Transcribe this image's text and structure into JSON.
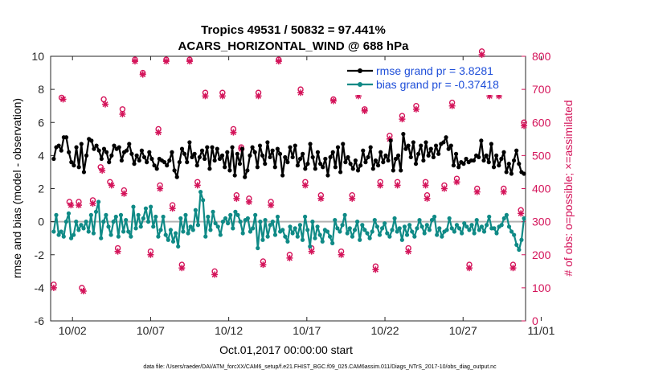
{
  "title_line1": "Tropics 49531 / 50832 = 97.441%",
  "title_line2": "ACARS_HORIZONTAL_WIND @ 688 hPa",
  "xlabel": "Oct.01,2017 00:00:00 start",
  "ylabel_left": "rmse and bias (model - observation)",
  "ylabel_right": "# of obs: o=possible; ×=assimilated",
  "footer": "data file: /Users/raeder/DAI/ATM_forcXX/CAM6_setup/f.e21.FHIST_BGC.f09_025.CAM6assim.011/Diags_NTrS_2017-10/obs_diag_output.nc",
  "colors": {
    "rmse": "#000000",
    "bias": "#0f8a86",
    "obs": "#d4145a",
    "zero_line": "#b3b3b3",
    "legend_text": "#1f4fd9"
  },
  "chart_data": {
    "type": "line",
    "x_start": "2017-10-01",
    "x_ticks": [
      "10/02",
      "10/07",
      "10/12",
      "10/17",
      "10/22",
      "10/27",
      "11/01"
    ],
    "xlim": [
      0.6,
      31.0
    ],
    "ylim_left": [
      -6,
      10
    ],
    "yticks_left": [
      "-6",
      "-4",
      "-2",
      "0",
      "2",
      "4",
      "6",
      "8",
      "10"
    ],
    "ylim_right": [
      0,
      800
    ],
    "yticks_right": [
      "0",
      "100",
      "200",
      "300",
      "400",
      "500",
      "600",
      "700",
      "800"
    ],
    "legend": [
      {
        "label": "rmse grand pr = 3.8281",
        "color": "#000000"
      },
      {
        "label": "bias grand pr = -0.37418",
        "color": "#0f8a86"
      }
    ],
    "series": [
      {
        "name": "rmse",
        "axis": "left",
        "values": [
          3.8,
          4.5,
          4.6,
          4.3,
          5.1,
          5.1,
          4.2,
          3.6,
          3.4,
          4.5,
          3.3,
          4.7,
          3.0,
          4.0,
          5.0,
          4.9,
          4.4,
          4.6,
          4.3,
          3.8,
          4.4,
          4.2,
          3.6,
          4.0,
          4.6,
          4.4,
          4.5,
          3.7,
          4.2,
          4.3,
          4.7,
          4.1,
          3.5,
          4.0,
          3.7,
          4.3,
          3.9,
          3.6,
          4.2,
          3.8,
          3.4,
          3.2,
          3.8,
          3.7,
          3.6,
          3.4,
          3.7,
          4.2,
          3.1,
          2.7,
          3.6,
          4.4,
          4.1,
          3.6,
          4.8,
          3.9,
          4.1,
          3.4,
          3.9,
          4.3,
          3.8,
          4.5,
          3.2,
          4.5,
          3.7,
          4.4,
          3.8,
          4.0,
          3.3,
          4.2,
          3.1,
          4.5,
          2.8,
          4.1,
          3.5,
          4.4,
          2.7,
          3.1,
          4.0,
          4.5,
          4.2,
          3.3,
          4.6,
          4.0,
          3.5,
          4.8,
          3.9,
          4.3,
          3.3,
          4.4,
          4.1,
          2.8,
          3.9,
          3.6,
          4.5,
          3.9,
          4.6,
          3.4,
          3.8,
          4.1,
          3.2,
          3.5,
          4.7,
          3.9,
          3.2,
          4.2,
          3.5,
          3.3,
          3.8,
          2.8,
          3.9,
          4.2,
          3.3,
          4.5,
          3.0,
          4.7,
          3.6,
          3.9,
          3.5,
          3.2,
          3.7,
          3.1,
          3.4,
          4.3,
          3.6,
          3.9,
          4.5,
          3.2,
          3.7,
          3.4,
          4.2,
          3.6,
          4.0,
          3.7,
          4.9,
          3.1,
          3.8,
          4.0,
          3.1,
          5.3,
          4.4,
          4.6,
          3.9,
          4.8,
          3.5,
          4.1,
          4.6,
          3.7,
          4.8,
          4.0,
          4.4,
          3.9,
          4.6,
          4.1,
          4.7,
          4.8,
          5.1,
          4.4,
          4.6,
          3.4,
          4.1,
          3.3,
          3.6,
          3.5,
          3.8,
          3.6,
          3.7,
          3.7,
          4.0,
          3.9,
          4.9,
          3.7,
          4.0,
          3.6,
          4.7,
          3.3,
          4.0,
          3.4,
          3.8,
          4.2,
          3.0,
          3.5,
          2.9,
          3.7,
          4.3,
          3.5,
          3.0,
          2.9
        ]
      },
      {
        "name": "bias",
        "axis": "left",
        "values": [
          -0.6,
          0.4,
          -0.8,
          -0.6,
          -0.9,
          0.0,
          0.5,
          -1.0,
          -0.8,
          0.0,
          -0.5,
          -0.2,
          -0.4,
          0.0,
          -0.6,
          0.4,
          -0.7,
          0.6,
          1.2,
          -1.0,
          0.0,
          0.4,
          -0.3,
          -0.8,
          0.0,
          0.3,
          -0.9,
          0.4,
          -0.6,
          0.1,
          -0.6,
          -0.9,
          0.9,
          -0.4,
          0.4,
          -0.3,
          0.2,
          0.8,
          0.0,
          0.9,
          -0.3,
          0.3,
          -0.9,
          -0.5,
          0.3,
          -0.8,
          -1.1,
          -0.5,
          -1.2,
          -0.7,
          -1.5,
          0.2,
          -0.6,
          0.4,
          -0.7,
          -0.3,
          -0.5,
          0.7,
          -0.2,
          1.8,
          1.3,
          -0.9,
          0.3,
          -0.5,
          0.6,
          -0.1,
          -0.3,
          -0.8,
          0.0,
          0.2,
          -0.1,
          0.4,
          -0.4,
          0.6,
          0.4,
          0.0,
          -0.7,
          0.1,
          0.2,
          -0.6,
          -0.4,
          0.4,
          -1.6,
          0.0,
          -1.1,
          0.1,
          -0.9,
          -0.2,
          0.0,
          -0.8,
          0.3,
          -0.6,
          -0.5,
          -0.9,
          -1.2,
          -0.3,
          -0.7,
          -0.4,
          -0.9,
          -0.2,
          -1.1,
          0.3,
          -0.5,
          -1.5,
          0.0,
          -1.0,
          -0.3,
          -0.8,
          -1.2,
          -0.5,
          -0.6,
          -0.9,
          -1.3,
          0.1,
          -0.4,
          -0.6,
          -0.2,
          0.4,
          -0.7,
          -0.4,
          -0.9,
          -0.5,
          0.0,
          -1.1,
          -0.2,
          -0.5,
          -0.7,
          -1.0,
          -0.6,
          0.1,
          -0.3,
          -0.8,
          -0.4,
          -0.1,
          -0.7,
          -0.9,
          -0.5,
          0.2,
          -0.6,
          -0.4,
          -1.1,
          -0.3,
          -0.8,
          -0.2,
          -0.6,
          -0.9,
          -0.4,
          0.1,
          -0.3,
          -0.7,
          -0.2,
          -0.5,
          0.1,
          0.3,
          -0.8,
          -0.4,
          -0.9,
          -0.6,
          -0.5,
          0.2,
          -0.4,
          -0.6,
          -0.2,
          -0.4,
          -0.7,
          -0.1,
          -0.3,
          -0.5,
          -0.2,
          -0.7,
          0.1,
          -0.5,
          -0.3,
          -0.6,
          -0.2,
          0.3,
          -0.4,
          -0.4,
          -0.7,
          -0.3,
          -0.2,
          0.2,
          0.4,
          -0.3,
          -0.6,
          -0.8,
          -1.4,
          -1.7,
          -1.1,
          0.2
        ]
      },
      {
        "name": "obs_possible",
        "axis": "right",
        "marker": "o",
        "points": [
          [
            0.8,
            110
          ],
          [
            1.3,
            675
          ],
          [
            1.8,
            360
          ],
          [
            2.4,
            360
          ],
          [
            2.6,
            100
          ],
          [
            3.3,
            365
          ],
          [
            3.8,
            465
          ],
          [
            4.0,
            670
          ],
          [
            4.4,
            420
          ],
          [
            4.9,
            220
          ],
          [
            5.2,
            640
          ],
          [
            5.3,
            395
          ],
          [
            6.0,
            790
          ],
          [
            6.5,
            750
          ],
          [
            7.0,
            210
          ],
          [
            7.5,
            580
          ],
          [
            7.6,
            410
          ],
          [
            8.0,
            790
          ],
          [
            8.4,
            350
          ],
          [
            9.0,
            170
          ],
          [
            9.5,
            790
          ],
          [
            10.0,
            420
          ],
          [
            10.5,
            690
          ],
          [
            11.1,
            150
          ],
          [
            11.6,
            690
          ],
          [
            12.3,
            580
          ],
          [
            12.5,
            380
          ],
          [
            12.8,
            525
          ],
          [
            13.3,
            370
          ],
          [
            13.9,
            690
          ],
          [
            14.2,
            180
          ],
          [
            14.7,
            360
          ],
          [
            15.2,
            790
          ],
          [
            15.9,
            200
          ],
          [
            16.6,
            700
          ],
          [
            16.9,
            420
          ],
          [
            17.3,
            220
          ],
          [
            17.9,
            380
          ],
          [
            18.7,
            670
          ],
          [
            19.2,
            210
          ],
          [
            19.9,
            380
          ],
          [
            20.3,
            690
          ],
          [
            20.7,
            640
          ],
          [
            21.4,
            165
          ],
          [
            21.7,
            420
          ],
          [
            22.3,
            560
          ],
          [
            22.8,
            420
          ],
          [
            23.1,
            620
          ],
          [
            23.5,
            220
          ],
          [
            24.0,
            650
          ],
          [
            24.6,
            420
          ],
          [
            24.7,
            380
          ],
          [
            25.4,
            740
          ],
          [
            25.8,
            410
          ],
          [
            26.3,
            660
          ],
          [
            26.6,
            430
          ],
          [
            27.1,
            760
          ],
          [
            27.4,
            170
          ],
          [
            27.9,
            400
          ],
          [
            28.2,
            815
          ],
          [
            28.7,
            690
          ],
          [
            29.3,
            690
          ],
          [
            29.6,
            400
          ],
          [
            30.2,
            170
          ],
          [
            30.7,
            335
          ],
          [
            30.9,
            600
          ]
        ]
      },
      {
        "name": "obs_assimilated",
        "axis": "right",
        "marker": "x",
        "points": [
          [
            0.8,
            100
          ],
          [
            1.4,
            670
          ],
          [
            1.9,
            350
          ],
          [
            2.4,
            350
          ],
          [
            2.7,
            90
          ],
          [
            3.3,
            355
          ],
          [
            3.9,
            455
          ],
          [
            4.1,
            655
          ],
          [
            4.5,
            410
          ],
          [
            4.9,
            210
          ],
          [
            5.2,
            625
          ],
          [
            5.3,
            385
          ],
          [
            6.0,
            785
          ],
          [
            6.5,
            745
          ],
          [
            7.0,
            200
          ],
          [
            7.5,
            570
          ],
          [
            7.6,
            400
          ],
          [
            8.0,
            785
          ],
          [
            8.4,
            340
          ],
          [
            9.0,
            160
          ],
          [
            9.5,
            785
          ],
          [
            10.0,
            410
          ],
          [
            10.5,
            680
          ],
          [
            11.1,
            140
          ],
          [
            11.6,
            680
          ],
          [
            12.3,
            570
          ],
          [
            12.5,
            370
          ],
          [
            12.8,
            520
          ],
          [
            13.3,
            360
          ],
          [
            13.9,
            680
          ],
          [
            14.2,
            170
          ],
          [
            14.7,
            350
          ],
          [
            15.2,
            785
          ],
          [
            15.9,
            190
          ],
          [
            16.6,
            690
          ],
          [
            16.9,
            410
          ],
          [
            17.3,
            210
          ],
          [
            17.9,
            370
          ],
          [
            18.7,
            665
          ],
          [
            19.2,
            200
          ],
          [
            19.9,
            370
          ],
          [
            20.3,
            680
          ],
          [
            20.7,
            635
          ],
          [
            21.4,
            155
          ],
          [
            21.7,
            410
          ],
          [
            22.3,
            550
          ],
          [
            22.8,
            410
          ],
          [
            23.1,
            610
          ],
          [
            23.5,
            210
          ],
          [
            24.0,
            640
          ],
          [
            24.6,
            410
          ],
          [
            24.7,
            370
          ],
          [
            25.4,
            730
          ],
          [
            25.8,
            400
          ],
          [
            26.3,
            650
          ],
          [
            26.6,
            420
          ],
          [
            27.1,
            750
          ],
          [
            27.4,
            160
          ],
          [
            27.9,
            390
          ],
          [
            28.2,
            805
          ],
          [
            28.7,
            680
          ],
          [
            29.3,
            680
          ],
          [
            29.6,
            390
          ],
          [
            30.2,
            160
          ],
          [
            30.7,
            325
          ],
          [
            30.9,
            590
          ]
        ]
      }
    ]
  }
}
